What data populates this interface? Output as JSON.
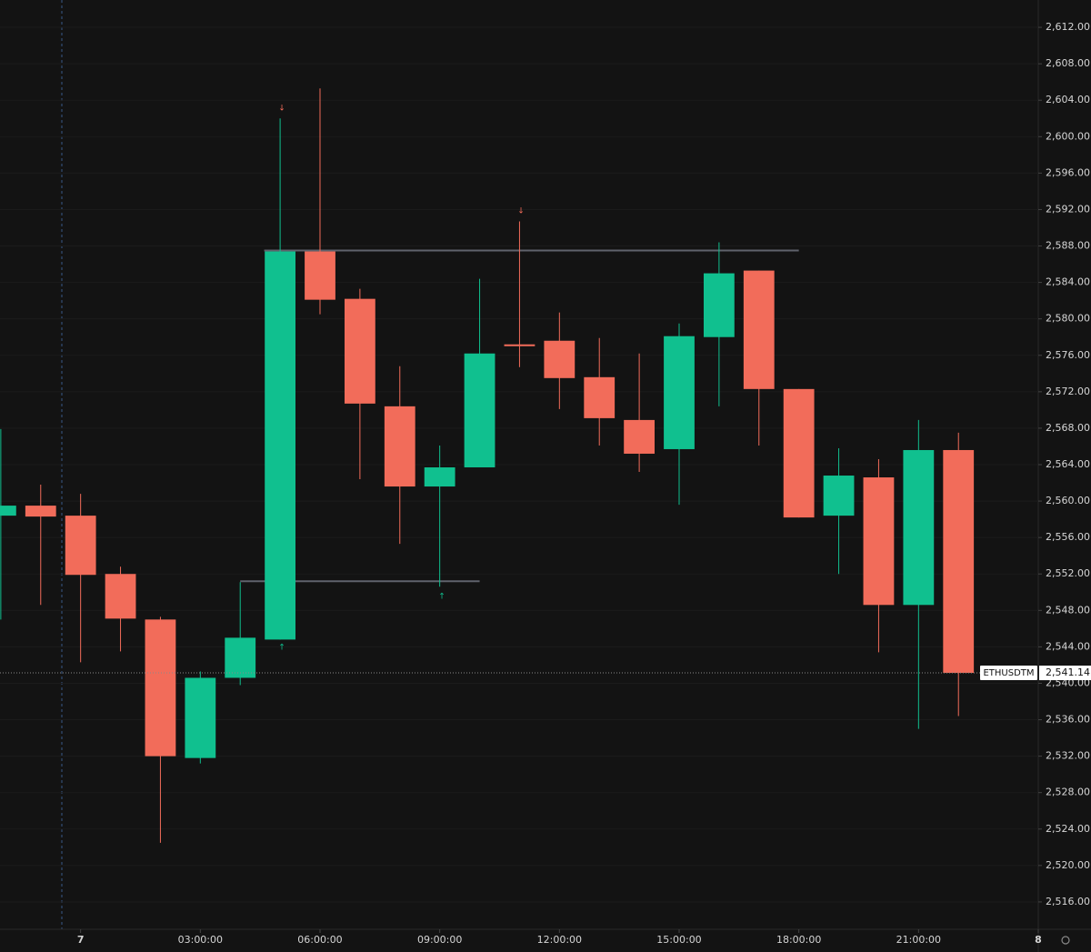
{
  "chart_data": {
    "type": "candlestick",
    "x": [
      -2,
      -1,
      0,
      1,
      2,
      3,
      4,
      5,
      6,
      7,
      8,
      9,
      10,
      11,
      12,
      13,
      14,
      15,
      16,
      17,
      18,
      19,
      20,
      21,
      22
    ],
    "open": [
      2558.4,
      2559.5,
      2558.4,
      2552.0,
      2547.0,
      2531.8,
      2540.6,
      2544.8,
      2587.4,
      2582.2,
      2570.4,
      2561.6,
      2563.7,
      2577.2,
      2577.6,
      2573.6,
      2568.9,
      2565.7,
      2578.0,
      2585.3,
      2572.3,
      2558.4,
      2562.6,
      2548.6,
      2565.6
    ],
    "high": [
      2567.9,
      2561.8,
      2560.8,
      2552.8,
      2547.3,
      2541.3,
      2551.1,
      2602.0,
      2605.3,
      2583.3,
      2574.8,
      2566.1,
      2584.4,
      2590.7,
      2580.7,
      2577.9,
      2576.2,
      2579.5,
      2588.4,
      2585.3,
      2572.3,
      2565.8,
      2564.6,
      2568.9,
      2567.5
    ],
    "low": [
      2547.0,
      2548.6,
      2542.3,
      2543.5,
      2522.5,
      2531.2,
      2539.8,
      2544.8,
      2580.5,
      2562.4,
      2555.3,
      2550.6,
      2563.7,
      2574.7,
      2570.1,
      2566.1,
      2563.2,
      2559.6,
      2570.4,
      2566.1,
      2558.2,
      2552.0,
      2543.4,
      2535.0,
      2536.4
    ],
    "close": [
      2559.5,
      2558.3,
      2551.9,
      2547.1,
      2532.0,
      2540.6,
      2545.0,
      2587.4,
      2582.1,
      2570.7,
      2561.6,
      2563.7,
      2576.2,
      2577.0,
      2573.5,
      2569.1,
      2565.2,
      2578.1,
      2585.0,
      2572.3,
      2558.2,
      2562.8,
      2548.6,
      2565.6,
      2541.14
    ],
    "up_color": "#10c08f",
    "down_color": "#f26c5a",
    "xlim": [
      -2.02,
      24
    ],
    "xticks": [
      {
        "value": 0,
        "label": "7"
      },
      {
        "value": 3,
        "label": "03:00:00"
      },
      {
        "value": 6,
        "label": "06:00:00"
      },
      {
        "value": 9,
        "label": "09:00:00"
      },
      {
        "value": 12,
        "label": "12:00:00"
      },
      {
        "value": 15,
        "label": "15:00:00"
      },
      {
        "value": 18,
        "label": "18:00:00"
      },
      {
        "value": 21,
        "label": "21:00:00"
      },
      {
        "value": 24,
        "label": "8"
      }
    ],
    "ylim": [
      2513,
      2615
    ],
    "yticks": [
      {
        "value": 2612,
        "label": "2,612.00"
      },
      {
        "value": 2608,
        "label": "2,608.00"
      },
      {
        "value": 2604,
        "label": "2,604.00"
      },
      {
        "value": 2600,
        "label": "2,600.00"
      },
      {
        "value": 2596,
        "label": "2,596.00"
      },
      {
        "value": 2592,
        "label": "2,592.00"
      },
      {
        "value": 2588,
        "label": "2,588.00"
      },
      {
        "value": 2584,
        "label": "2,584.00"
      },
      {
        "value": 2580,
        "label": "2,580.00"
      },
      {
        "value": 2576,
        "label": "2,576.00"
      },
      {
        "value": 2572,
        "label": "2,572.00"
      },
      {
        "value": 2568,
        "label": "2,568.00"
      },
      {
        "value": 2564,
        "label": "2,564.00"
      },
      {
        "value": 2560,
        "label": "2,560.00"
      },
      {
        "value": 2556,
        "label": "2,556.00"
      },
      {
        "value": 2552,
        "label": "2,552.00"
      },
      {
        "value": 2548,
        "label": "2,548.00"
      },
      {
        "value": 2544,
        "label": "2,544.00"
      },
      {
        "value": 2540,
        "label": "2,540.00"
      },
      {
        "value": 2536,
        "label": "2,536.00"
      },
      {
        "value": 2532,
        "label": "2,532.00"
      },
      {
        "value": 2528,
        "label": "2,528.00"
      },
      {
        "value": 2524,
        "label": "2,524.00"
      },
      {
        "value": 2520,
        "label": "2,520.00"
      },
      {
        "value": 2516,
        "label": "2,516.00"
      }
    ],
    "grid": true,
    "levels": [
      {
        "value": 2587.5,
        "x": [
          4.6,
          18
        ]
      },
      {
        "value": 2551.2,
        "x": [
          4,
          10
        ]
      }
    ],
    "last_price": {
      "symbol": "ETHUSDTM",
      "value": 2541.14,
      "label": "2,541.14"
    }
  }
}
